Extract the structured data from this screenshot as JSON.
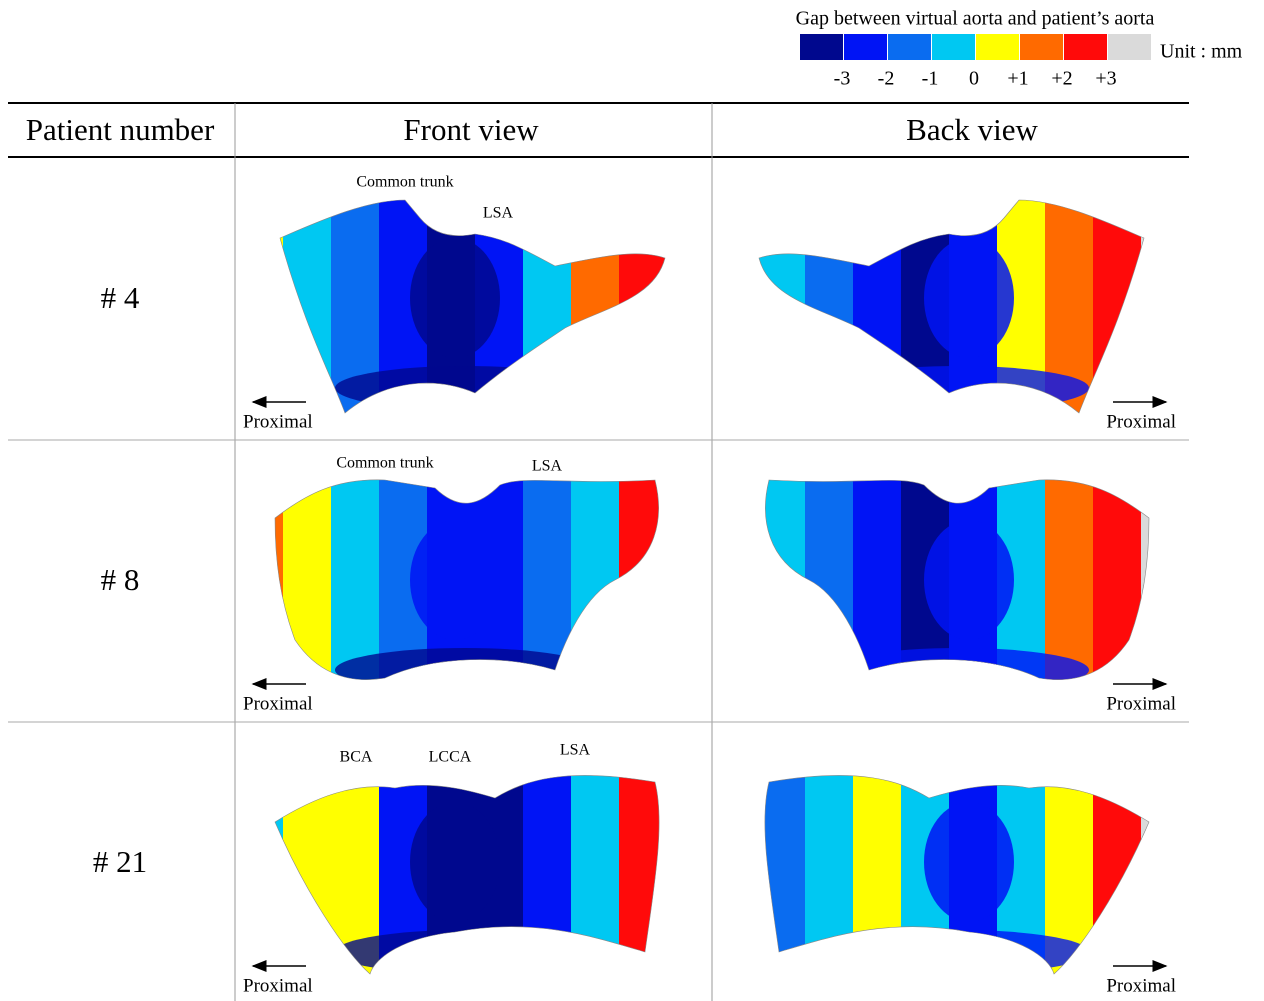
{
  "legend": {
    "title": "Gap between virtual aorta and patient’s aorta",
    "colors": [
      "#00088e",
      "#0014f5",
      "#0a6cf0",
      "#00c8f2",
      "#ffff00",
      "#ff6a00",
      "#ff0a0a",
      "#dadada"
    ],
    "labels": [
      "-3",
      "-2",
      "-1",
      "0",
      "+1",
      "+2",
      "+3"
    ],
    "unit": "Unit : mm"
  },
  "table": {
    "header": [
      "Patient number",
      "Front view",
      "Back view"
    ],
    "rows": [
      {
        "patient": "# 4",
        "front_labels": [
          "Common trunk",
          "LSA"
        ],
        "front_proximal": "Proximal",
        "back_proximal": "Proximal"
      },
      {
        "patient": "# 8",
        "front_labels": [
          "Common trunk",
          "LSA"
        ],
        "front_proximal": "Proximal",
        "back_proximal": "Proximal"
      },
      {
        "patient": "# 21",
        "front_labels": [
          "BCA",
          "LCCA",
          "LSA"
        ],
        "front_proximal": "Proximal",
        "back_proximal": "Proximal"
      }
    ]
  }
}
